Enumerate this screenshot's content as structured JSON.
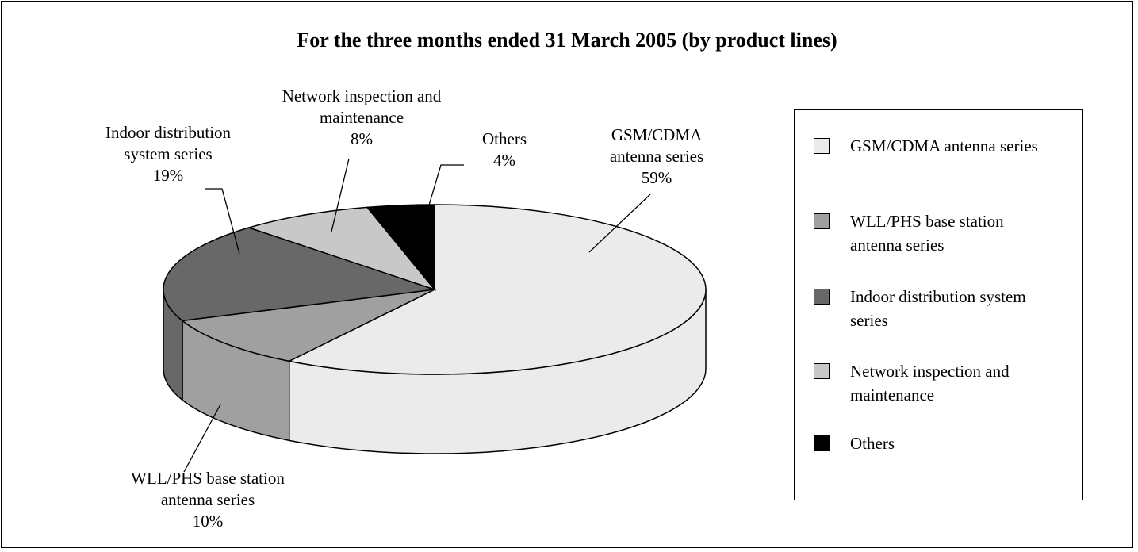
{
  "chart_data": {
    "type": "pie",
    "title": "For the three months ended 31 March 2005 (by product lines)",
    "categories": [
      "GSM/CDMA antenna series",
      "WLL/PHS base station antenna series",
      "Indoor distribution system series",
      "Network inspection and maintenance",
      "Others"
    ],
    "values": [
      59,
      10,
      19,
      8,
      4
    ],
    "value_labels": [
      "59%",
      "10%",
      "19%",
      "8%",
      "4%"
    ],
    "colors": [
      "#ebebeb",
      "#a0a0a0",
      "#686868",
      "#c8c8c8",
      "#000000"
    ],
    "legend": "right"
  }
}
